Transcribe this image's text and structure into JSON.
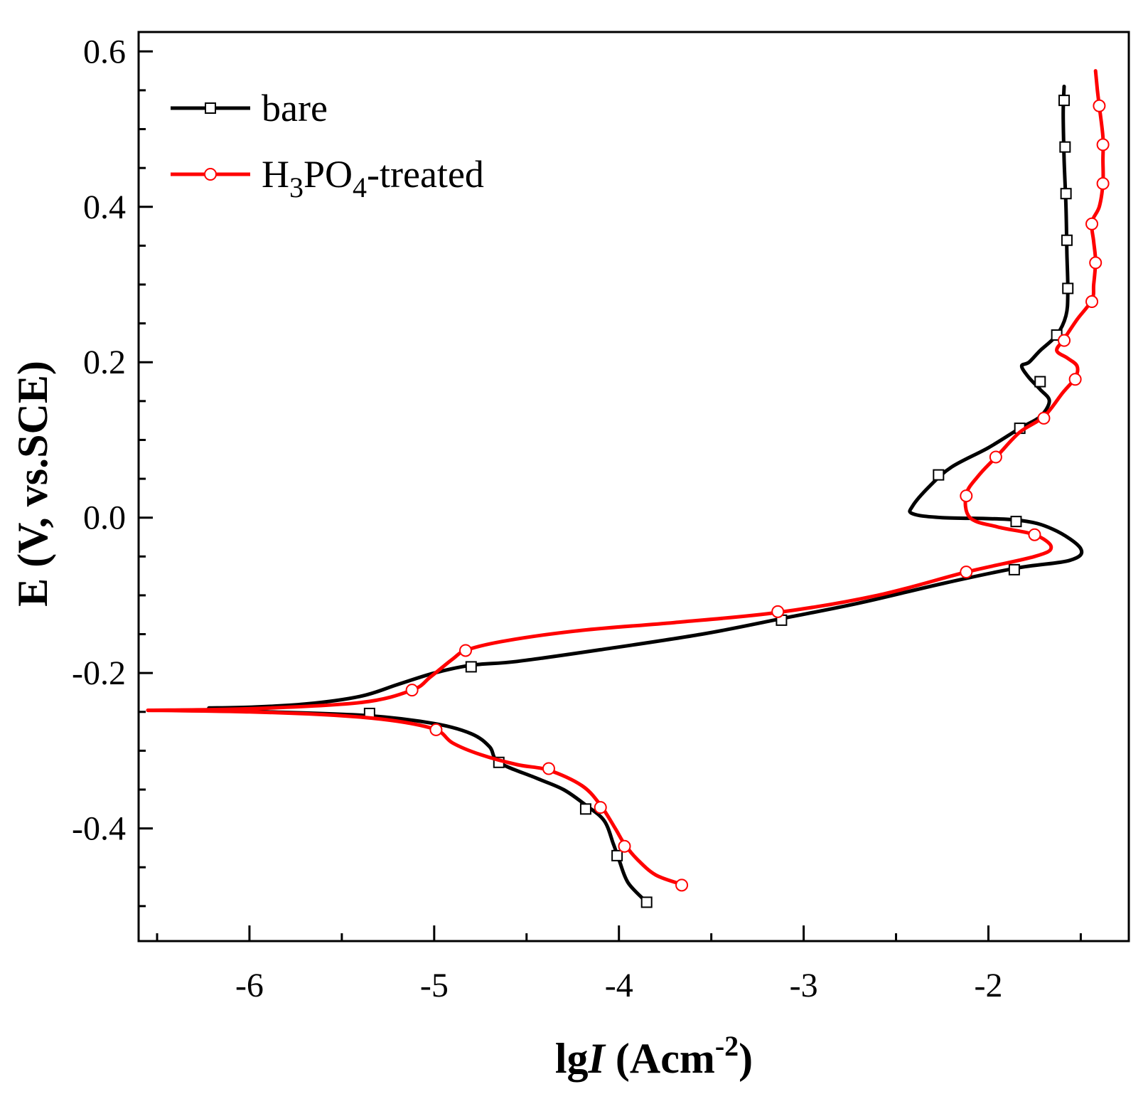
{
  "chart_data": {
    "type": "line",
    "title": "",
    "xlabel": "lgI (Acm-2)",
    "xlabel_parts": {
      "prefix": "lg",
      "italic": "I",
      "unit_open": " (Acm",
      "unit_sup": "-2",
      "unit_close": ")"
    },
    "ylabel": "E (V, vs.SCE)",
    "xlim": [
      -6.6,
      -1.24
    ],
    "ylim": [
      -0.545,
      0.625
    ],
    "xticks": [
      -6,
      -5,
      -4,
      -3,
      -2
    ],
    "xtick_labels": [
      "-6",
      "-5",
      "-4",
      "-3",
      "-2"
    ],
    "yticks": [
      -0.4,
      -0.2,
      0.0,
      0.2,
      0.4,
      0.6
    ],
    "ytick_labels": [
      "-0.4",
      "-0.2",
      "0.0",
      "0.2",
      "0.4",
      "0.6"
    ],
    "legend": {
      "position": "top-left",
      "entries": [
        {
          "label": "bare",
          "series": 0
        },
        {
          "label_parts": {
            "a": "H",
            "s1": "3",
            "b": "PO",
            "s2": "4",
            "c": "-treated"
          },
          "series": 1
        }
      ]
    },
    "series": [
      {
        "name": "bare",
        "color": "#000000",
        "marker": "square",
        "points": [
          [
            -1.59,
            0.555
          ],
          [
            -1.595,
            0.52
          ],
          [
            -1.59,
            0.46
          ],
          [
            -1.58,
            0.4
          ],
          [
            -1.575,
            0.34
          ],
          [
            -1.57,
            0.29
          ],
          [
            -1.58,
            0.26
          ],
          [
            -1.63,
            0.235
          ],
          [
            -1.72,
            0.215
          ],
          [
            -1.78,
            0.2
          ],
          [
            -1.82,
            0.195
          ],
          [
            -1.78,
            0.18
          ],
          [
            -1.72,
            0.165
          ],
          [
            -1.67,
            0.15
          ],
          [
            -1.72,
            0.13
          ],
          [
            -1.83,
            0.115
          ],
          [
            -2.0,
            0.09
          ],
          [
            -2.2,
            0.065
          ],
          [
            -2.32,
            0.04
          ],
          [
            -2.41,
            0.015
          ],
          [
            -2.41,
            0.005
          ],
          [
            -2.25,
            0.0
          ],
          [
            -1.85,
            -0.003
          ],
          [
            -1.65,
            -0.015
          ],
          [
            -1.5,
            -0.04
          ],
          [
            -1.56,
            -0.055
          ],
          [
            -1.85,
            -0.065
          ],
          [
            -2.25,
            -0.085
          ],
          [
            -2.7,
            -0.11
          ],
          [
            -3.12,
            -0.13
          ],
          [
            -3.55,
            -0.15
          ],
          [
            -4.1,
            -0.17
          ],
          [
            -4.55,
            -0.185
          ],
          [
            -4.8,
            -0.19
          ],
          [
            -5.0,
            -0.2
          ],
          [
            -5.2,
            -0.215
          ],
          [
            -5.4,
            -0.23
          ],
          [
            -5.7,
            -0.24
          ],
          [
            -6.0,
            -0.244
          ],
          [
            -6.22,
            -0.245
          ]
        ],
        "branch2": [
          [
            -6.2,
            -0.248
          ],
          [
            -5.9,
            -0.25
          ],
          [
            -5.35,
            -0.255
          ],
          [
            -5.0,
            -0.265
          ],
          [
            -4.8,
            -0.278
          ],
          [
            -4.7,
            -0.295
          ],
          [
            -4.65,
            -0.315
          ],
          [
            -4.45,
            -0.335
          ],
          [
            -4.3,
            -0.35
          ],
          [
            -4.18,
            -0.37
          ],
          [
            -4.08,
            -0.39
          ],
          [
            -4.03,
            -0.42
          ],
          [
            -4.0,
            -0.44
          ],
          [
            -3.95,
            -0.47
          ],
          [
            -3.85,
            -0.495
          ]
        ],
        "markers": [
          [
            -1.59,
            0.537
          ],
          [
            -1.585,
            0.477
          ],
          [
            -1.58,
            0.417
          ],
          [
            -1.575,
            0.357
          ],
          [
            -1.57,
            0.295
          ],
          [
            -1.63,
            0.235
          ],
          [
            -1.72,
            0.175
          ],
          [
            -1.83,
            0.115
          ],
          [
            -2.27,
            0.055
          ],
          [
            -1.85,
            -0.005
          ],
          [
            -1.86,
            -0.067
          ],
          [
            -3.12,
            -0.132
          ],
          [
            -4.8,
            -0.192
          ],
          [
            -5.35,
            -0.252
          ],
          [
            -4.65,
            -0.315
          ],
          [
            -4.18,
            -0.375
          ],
          [
            -4.01,
            -0.435
          ],
          [
            -3.85,
            -0.495
          ]
        ]
      },
      {
        "name": "H3PO4-treated",
        "color": "#ff0000",
        "marker": "circle",
        "points": [
          [
            -1.42,
            0.575
          ],
          [
            -1.41,
            0.55
          ],
          [
            -1.4,
            0.53
          ],
          [
            -1.38,
            0.49
          ],
          [
            -1.38,
            0.46
          ],
          [
            -1.38,
            0.43
          ],
          [
            -1.4,
            0.4
          ],
          [
            -1.44,
            0.38
          ],
          [
            -1.43,
            0.355
          ],
          [
            -1.42,
            0.33
          ],
          [
            -1.43,
            0.3
          ],
          [
            -1.44,
            0.28
          ],
          [
            -1.52,
            0.255
          ],
          [
            -1.59,
            0.23
          ],
          [
            -1.63,
            0.215
          ],
          [
            -1.57,
            0.205
          ],
          [
            -1.52,
            0.195
          ],
          [
            -1.53,
            0.18
          ],
          [
            -1.6,
            0.16
          ],
          [
            -1.7,
            0.13
          ],
          [
            -1.83,
            0.11
          ],
          [
            -1.95,
            0.08
          ],
          [
            -2.05,
            0.055
          ],
          [
            -2.12,
            0.03
          ],
          [
            -2.1,
            0.0
          ],
          [
            -1.95,
            -0.012
          ],
          [
            -1.75,
            -0.022
          ],
          [
            -1.66,
            -0.038
          ],
          [
            -1.75,
            -0.05
          ],
          [
            -2.12,
            -0.07
          ],
          [
            -2.6,
            -0.1
          ],
          [
            -3.14,
            -0.122
          ],
          [
            -3.7,
            -0.135
          ],
          [
            -4.2,
            -0.145
          ],
          [
            -4.6,
            -0.158
          ],
          [
            -4.82,
            -0.17
          ],
          [
            -4.9,
            -0.182
          ],
          [
            -5.02,
            -0.205
          ],
          [
            -5.12,
            -0.222
          ],
          [
            -5.4,
            -0.238
          ],
          [
            -6.0,
            -0.246
          ],
          [
            -6.55,
            -0.248
          ]
        ],
        "branch2": [
          [
            -6.55,
            -0.248
          ],
          [
            -6.0,
            -0.25
          ],
          [
            -5.5,
            -0.255
          ],
          [
            -5.2,
            -0.262
          ],
          [
            -4.99,
            -0.273
          ],
          [
            -4.9,
            -0.29
          ],
          [
            -4.75,
            -0.305
          ],
          [
            -4.55,
            -0.318
          ],
          [
            -4.38,
            -0.325
          ],
          [
            -4.2,
            -0.345
          ],
          [
            -4.1,
            -0.37
          ],
          [
            -4.02,
            -0.4
          ],
          [
            -3.97,
            -0.42
          ],
          [
            -3.9,
            -0.44
          ],
          [
            -3.8,
            -0.46
          ],
          [
            -3.66,
            -0.472
          ]
        ],
        "markers": [
          [
            -1.4,
            0.53
          ],
          [
            -1.38,
            0.48
          ],
          [
            -1.38,
            0.43
          ],
          [
            -1.44,
            0.378
          ],
          [
            -1.42,
            0.328
          ],
          [
            -1.44,
            0.278
          ],
          [
            -1.59,
            0.228
          ],
          [
            -1.53,
            0.178
          ],
          [
            -1.7,
            0.128
          ],
          [
            -1.96,
            0.078
          ],
          [
            -2.12,
            0.028
          ],
          [
            -1.75,
            -0.022
          ],
          [
            -2.12,
            -0.07
          ],
          [
            -3.14,
            -0.121
          ],
          [
            -4.83,
            -0.171
          ],
          [
            -5.12,
            -0.222
          ],
          [
            -4.99,
            -0.273
          ],
          [
            -4.38,
            -0.323
          ],
          [
            -4.1,
            -0.373
          ],
          [
            -3.97,
            -0.423
          ],
          [
            -3.66,
            -0.473
          ]
        ]
      }
    ]
  }
}
